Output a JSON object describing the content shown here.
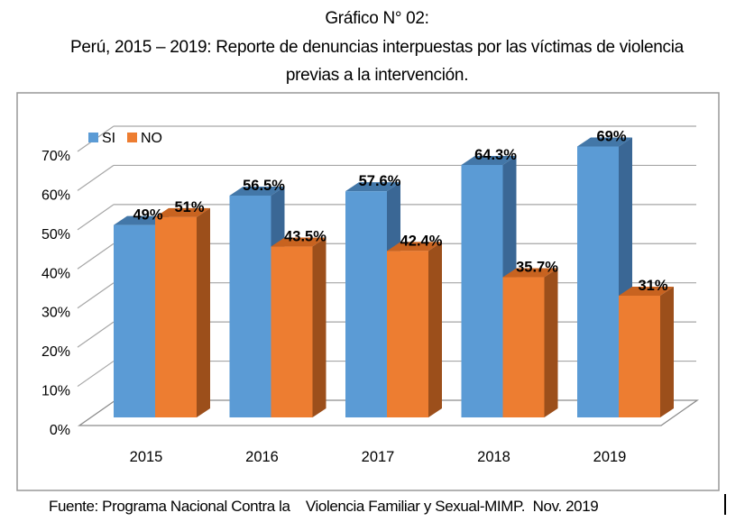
{
  "title": {
    "line1": "Gráfico N° 02:",
    "line2": "Perú, 2015 – 2019: Reporte de denuncias interpuestas por las víctimas de violencia",
    "line3": "previas a la intervención."
  },
  "legend": [
    {
      "label": "SI",
      "color": "#5B9BD5"
    },
    {
      "label": "NO",
      "color": "#ED7D31"
    }
  ],
  "source": "Fuente: Programa Nacional Contra la    Violencia Familiar y Sexual-MIMP.  Nov. 2019",
  "chart_data": {
    "type": "bar",
    "style": "3d-clustered-column",
    "title": "Perú, 2015 – 2019: Reporte de denuncias interpuestas por las víctimas de violencia previas a la intervención",
    "categories": [
      "2015",
      "2016",
      "2017",
      "2018",
      "2019"
    ],
    "series": [
      {
        "name": "SI",
        "values": [
          49,
          56.5,
          57.6,
          64.3,
          69
        ],
        "value_labels": [
          "49%",
          "56.5%",
          "57.6%",
          "64.3%",
          "69%"
        ],
        "color_front": "#5B9BD5",
        "color_top": "#4377A8",
        "color_side": "#3A6795"
      },
      {
        "name": "NO",
        "values": [
          51,
          43.5,
          42.4,
          35.7,
          31
        ],
        "value_labels": [
          "51%",
          "43.5%",
          "42.4%",
          "35.7%",
          "31%"
        ],
        "color_front": "#ED7D31",
        "color_top": "#C86320",
        "color_side": "#9C4F1B"
      }
    ],
    "xlabel": "",
    "ylabel": "",
    "ylim": [
      0,
      70
    ],
    "y_ticks": [
      "0%",
      "10%",
      "20%",
      "30%",
      "40%",
      "50%",
      "60%",
      "70%"
    ],
    "grid": true,
    "gridline_color": "#A6A6A6",
    "frame_color": "#999999",
    "legend_position": "top-left-inside"
  }
}
